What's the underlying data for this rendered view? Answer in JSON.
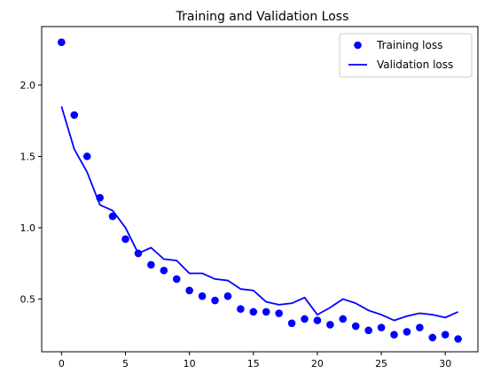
{
  "chart_data": {
    "type": "line",
    "title": "Training and Validation Loss",
    "xlabel": "",
    "ylabel": "",
    "xlim": [
      -1.55,
      32.55
    ],
    "ylim": [
      0.13,
      2.41
    ],
    "xticks": [
      0,
      5,
      10,
      15,
      20,
      25,
      30
    ],
    "yticks": [
      0.5,
      1.0,
      1.5,
      2.0
    ],
    "xtick_labels": [
      "0",
      "5",
      "10",
      "15",
      "20",
      "25",
      "30"
    ],
    "ytick_labels": [
      "0.5",
      "1.0",
      "1.5",
      "2.0"
    ],
    "grid": false,
    "legend_position": "top-right",
    "x": [
      0,
      1,
      2,
      3,
      4,
      5,
      6,
      7,
      8,
      9,
      10,
      11,
      12,
      13,
      14,
      15,
      16,
      17,
      18,
      19,
      20,
      21,
      22,
      23,
      24,
      25,
      26,
      27,
      28,
      29,
      30,
      31
    ],
    "series": [
      {
        "name": "Training loss",
        "style": "markers",
        "color": "#0000ff",
        "values": [
          2.3,
          1.79,
          1.5,
          1.21,
          1.08,
          0.92,
          0.82,
          0.74,
          0.7,
          0.64,
          0.56,
          0.52,
          0.49,
          0.52,
          0.43,
          0.41,
          0.41,
          0.4,
          0.33,
          0.36,
          0.35,
          0.32,
          0.36,
          0.31,
          0.28,
          0.3,
          0.25,
          0.27,
          0.3,
          0.23,
          0.25,
          0.22
        ]
      },
      {
        "name": "Validation loss",
        "style": "line",
        "color": "#0000ff",
        "values": [
          1.85,
          1.55,
          1.39,
          1.16,
          1.12,
          1.0,
          0.82,
          0.86,
          0.78,
          0.77,
          0.68,
          0.68,
          0.64,
          0.63,
          0.57,
          0.56,
          0.48,
          0.46,
          0.47,
          0.51,
          0.39,
          0.44,
          0.5,
          0.47,
          0.42,
          0.39,
          0.35,
          0.38,
          0.4,
          0.39,
          0.37,
          0.41
        ]
      }
    ]
  }
}
